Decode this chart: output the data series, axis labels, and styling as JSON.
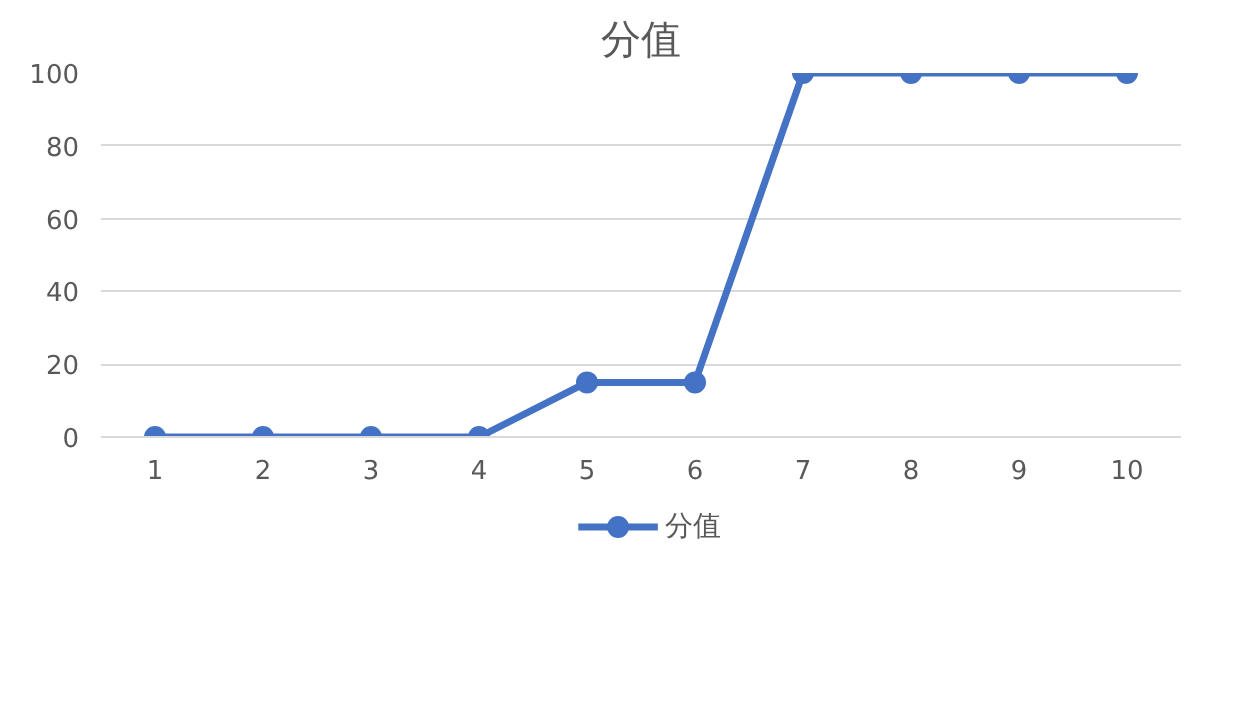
{
  "chart_data": {
    "type": "line",
    "title": "分值",
    "categories": [
      "1",
      "2",
      "3",
      "4",
      "5",
      "6",
      "7",
      "8",
      "9",
      "10"
    ],
    "series": [
      {
        "name": "分值",
        "color": "#4472c4",
        "values": [
          0,
          0,
          0,
          0,
          15,
          15,
          100,
          100,
          100,
          100
        ]
      }
    ],
    "ylim": [
      0,
      100
    ],
    "yticks": [
      0,
      20,
      40,
      60,
      80,
      100
    ],
    "grid": "y",
    "legend": "bottom",
    "marker": "circle",
    "line_style": "solid"
  }
}
